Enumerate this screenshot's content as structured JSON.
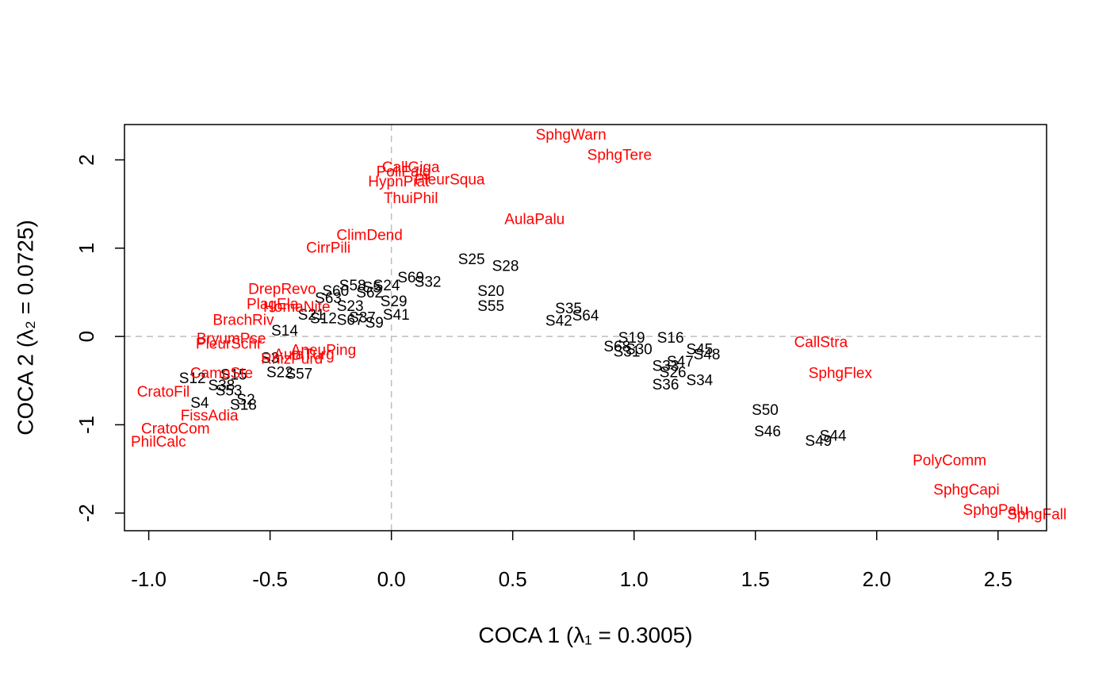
{
  "chart_data": {
    "type": "scatter",
    "title": "",
    "xlabel": "COCA 1  (λ₁ = 0.3005)",
    "ylabel": "COCA 2  (λ₂ = 0.0725)",
    "xlim": [
      -1.1,
      2.7
    ],
    "ylim": [
      -2.2,
      2.4
    ],
    "x_ticks": [
      -1.0,
      -0.5,
      0.0,
      0.5,
      1.0,
      1.5,
      2.0,
      2.5
    ],
    "x_tick_labels": [
      "-1.0",
      "-0.5",
      "0.0",
      "0.5",
      "1.0",
      "1.5",
      "2.0",
      "2.5"
    ],
    "y_ticks": [
      -2,
      -1,
      0,
      1,
      2
    ],
    "y_tick_labels": [
      "-2",
      "-1",
      "0",
      "1",
      "2"
    ],
    "reference_lines": {
      "x": 0,
      "y": 0,
      "style": "dashed",
      "color": "#bebebe"
    },
    "grid": false,
    "legend": "none",
    "colors": {
      "sites": "#000000",
      "species": "#ff0000",
      "axes": "#000000"
    },
    "series": [
      {
        "name": "",
        "color": "#000000",
        "points": [
          {
            "label": "S25",
            "x": 0.33,
            "y": 0.87
          },
          {
            "label": "S28",
            "x": 0.47,
            "y": 0.79
          },
          {
            "label": "S69",
            "x": 0.08,
            "y": 0.66
          },
          {
            "label": "S32",
            "x": 0.15,
            "y": 0.61
          },
          {
            "label": "S24",
            "x": -0.02,
            "y": 0.57
          },
          {
            "label": "S58",
            "x": -0.16,
            "y": 0.57
          },
          {
            "label": "S5",
            "x": -0.08,
            "y": 0.55
          },
          {
            "label": "S62",
            "x": -0.09,
            "y": 0.49
          },
          {
            "label": "S60",
            "x": -0.23,
            "y": 0.51
          },
          {
            "label": "S20",
            "x": 0.41,
            "y": 0.51
          },
          {
            "label": "S29",
            "x": 0.01,
            "y": 0.39
          },
          {
            "label": "S63",
            "x": -0.26,
            "y": 0.43
          },
          {
            "label": "S23",
            "x": -0.17,
            "y": 0.34
          },
          {
            "label": "S55",
            "x": 0.41,
            "y": 0.34
          },
          {
            "label": "S41",
            "x": 0.02,
            "y": 0.24
          },
          {
            "label": "S37",
            "x": -0.12,
            "y": 0.21
          },
          {
            "label": "S67",
            "x": -0.17,
            "y": 0.18
          },
          {
            "label": "S9",
            "x": -0.07,
            "y": 0.15
          },
          {
            "label": "S21",
            "x": -0.33,
            "y": 0.24
          },
          {
            "label": "S12",
            "x": -0.28,
            "y": 0.2
          },
          {
            "label": "S35",
            "x": 0.73,
            "y": 0.31
          },
          {
            "label": "S64",
            "x": 0.8,
            "y": 0.23
          },
          {
            "label": "S42",
            "x": 0.69,
            "y": 0.17
          },
          {
            "label": "S14",
            "x": -0.44,
            "y": 0.06
          },
          {
            "label": "S19",
            "x": 0.99,
            "y": -0.02
          },
          {
            "label": "S16",
            "x": 1.15,
            "y": -0.02
          },
          {
            "label": "S68",
            "x": 0.93,
            "y": -0.12
          },
          {
            "label": "S31",
            "x": 0.97,
            "y": -0.18
          },
          {
            "label": "S30",
            "x": 1.02,
            "y": -0.15
          },
          {
            "label": "S45",
            "x": 1.27,
            "y": -0.15
          },
          {
            "label": "S48",
            "x": 1.3,
            "y": -0.21
          },
          {
            "label": "S47",
            "x": 1.19,
            "y": -0.29
          },
          {
            "label": "S33",
            "x": 1.13,
            "y": -0.34
          },
          {
            "label": "S26",
            "x": 1.16,
            "y": -0.41
          },
          {
            "label": "S34",
            "x": 1.27,
            "y": -0.5
          },
          {
            "label": "S36",
            "x": 1.13,
            "y": -0.55
          },
          {
            "label": "S22",
            "x": -0.46,
            "y": -0.41
          },
          {
            "label": "S57",
            "x": -0.38,
            "y": -0.43
          },
          {
            "label": "S3",
            "x": -0.5,
            "y": -0.25
          },
          {
            "label": "S12",
            "x": -0.82,
            "y": -0.48
          },
          {
            "label": "S15",
            "x": -0.65,
            "y": -0.44
          },
          {
            "label": "S38",
            "x": -0.7,
            "y": -0.56
          },
          {
            "label": "S53",
            "x": -0.67,
            "y": -0.62
          },
          {
            "label": "S4",
            "x": -0.79,
            "y": -0.76
          },
          {
            "label": "S2",
            "x": -0.6,
            "y": -0.72
          },
          {
            "label": "S18",
            "x": -0.61,
            "y": -0.78
          },
          {
            "label": "S50",
            "x": 1.54,
            "y": -0.84
          },
          {
            "label": "S46",
            "x": 1.55,
            "y": -1.08
          },
          {
            "label": "S44",
            "x": 1.82,
            "y": -1.13
          },
          {
            "label": "S49",
            "x": 1.76,
            "y": -1.19
          }
        ]
      },
      {
        "name": "",
        "color": "#ff0000",
        "points": [
          {
            "label": "SphgWarn",
            "x": 0.74,
            "y": 2.28
          },
          {
            "label": "SphgTere",
            "x": 0.94,
            "y": 2.05
          },
          {
            "label": "CallGiga",
            "x": 0.08,
            "y": 1.91
          },
          {
            "label": "PoliFaig",
            "x": 0.05,
            "y": 1.86
          },
          {
            "label": "HypnPiat",
            "x": 0.03,
            "y": 1.75
          },
          {
            "label": "PleurSqua",
            "x": 0.24,
            "y": 1.77
          },
          {
            "label": "ThuiPhil",
            "x": 0.08,
            "y": 1.56
          },
          {
            "label": "AulaPalu",
            "x": 0.59,
            "y": 1.32
          },
          {
            "label": "ClimDend",
            "x": -0.09,
            "y": 1.14
          },
          {
            "label": "CirrPili",
            "x": -0.26,
            "y": 1.0
          },
          {
            "label": "DrepRevo",
            "x": -0.45,
            "y": 0.53
          },
          {
            "label": "PlagEla",
            "x": -0.49,
            "y": 0.36
          },
          {
            "label": "HomaNite",
            "x": -0.39,
            "y": 0.33
          },
          {
            "label": "BrachRiv",
            "x": -0.61,
            "y": 0.18
          },
          {
            "label": "BryumPse",
            "x": -0.66,
            "y": -0.03
          },
          {
            "label": "PleurSchr",
            "x": -0.67,
            "y": -0.09
          },
          {
            "label": "AneuPing",
            "x": -0.28,
            "y": -0.16
          },
          {
            "label": "AulaTurg",
            "x": -0.36,
            "y": -0.21
          },
          {
            "label": "RhizPurd",
            "x": -0.41,
            "y": -0.26
          },
          {
            "label": "CampSte",
            "x": -0.7,
            "y": -0.42
          },
          {
            "label": "CallStra",
            "x": 1.77,
            "y": -0.07
          },
          {
            "label": "SphgFlex",
            "x": 1.85,
            "y": -0.42
          },
          {
            "label": "CratoFil",
            "x": -0.94,
            "y": -0.63
          },
          {
            "label": "FissAdia",
            "x": -0.75,
            "y": -0.9
          },
          {
            "label": "CratoCom",
            "x": -0.89,
            "y": -1.05
          },
          {
            "label": "PhilCalc",
            "x": -0.96,
            "y": -1.2
          },
          {
            "label": "PolyComm",
            "x": 2.3,
            "y": -1.41
          },
          {
            "label": "SphgCapi",
            "x": 2.37,
            "y": -1.74
          },
          {
            "label": "SphgPalu",
            "x": 2.49,
            "y": -1.97
          },
          {
            "label": "SphgFall",
            "x": 2.66,
            "y": -2.02
          }
        ]
      }
    ]
  }
}
